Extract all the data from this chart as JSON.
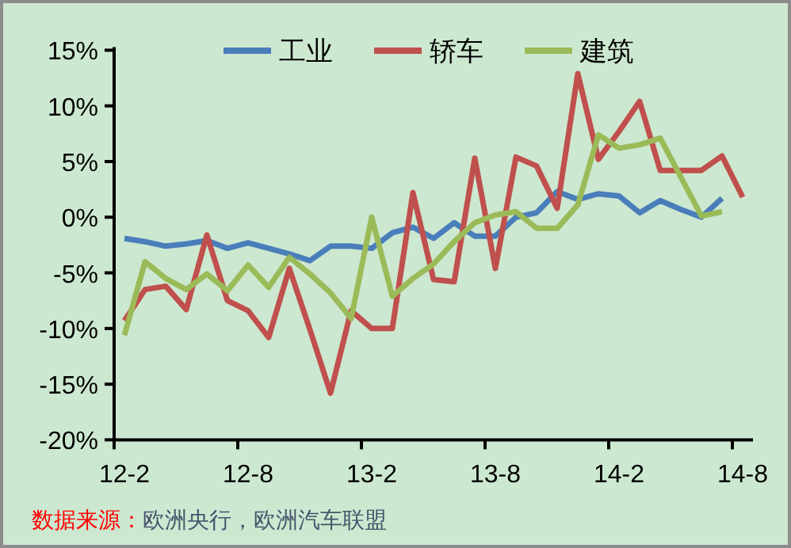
{
  "chart_data": {
    "type": "line",
    "categories": [
      "12-2",
      null,
      null,
      null,
      null,
      null,
      "12-8",
      null,
      null,
      null,
      null,
      null,
      "13-2",
      null,
      null,
      null,
      null,
      null,
      "13-8",
      null,
      null,
      null,
      null,
      null,
      "14-2",
      null,
      null,
      null,
      null,
      null,
      "14-8"
    ],
    "series": [
      {
        "name": "工业",
        "color": "#4a7ebb",
        "values": [
          -1.9,
          -2.2,
          -2.6,
          -2.4,
          -2.1,
          -2.8,
          -2.3,
          -2.8,
          -3.3,
          -3.9,
          -2.6,
          -2.6,
          -2.8,
          -1.4,
          -0.9,
          -1.9,
          -0.5,
          -1.7,
          -1.7,
          0.0,
          0.4,
          2.3,
          1.6,
          2.1,
          1.9,
          0.4,
          1.5,
          0.7,
          0.0,
          1.7,
          null
        ]
      },
      {
        "name": "轿车",
        "color": "#c0504d",
        "values": [
          -9.3,
          -6.5,
          -6.2,
          -8.3,
          -1.6,
          -7.5,
          -8.4,
          -10.8,
          -4.6,
          -10.1,
          -15.8,
          -8.4,
          -10.0,
          -10.0,
          2.2,
          -5.6,
          -5.8,
          5.3,
          -4.6,
          5.4,
          4.6,
          0.8,
          12.9,
          5.2,
          7.7,
          10.4,
          4.2,
          4.2,
          4.2,
          5.5,
          1.8
        ]
      },
      {
        "name": "建筑",
        "color": "#9bbb59",
        "values": [
          -10.6,
          -4.0,
          -5.5,
          -6.5,
          -5.1,
          -6.6,
          -4.3,
          -6.3,
          -3.6,
          -5.1,
          -6.8,
          -9.1,
          0.0,
          -7.1,
          -5.5,
          -4.2,
          -2.2,
          -0.5,
          0.2,
          0.5,
          -1.0,
          -1.0,
          1.1,
          7.4,
          6.2,
          6.5,
          7.1,
          3.6,
          0.1,
          0.5,
          null
        ]
      }
    ],
    "ylim": [
      -20,
      15
    ],
    "yticks": [
      {
        "value": -20,
        "label": "-20%"
      },
      {
        "value": -15,
        "label": "-15%"
      },
      {
        "value": -10,
        "label": "-10%"
      },
      {
        "value": -5,
        "label": "-5%"
      },
      {
        "value": 0,
        "label": "0%"
      },
      {
        "value": 5,
        "label": "5%"
      },
      {
        "value": 10,
        "label": "10%"
      },
      {
        "value": 15,
        "label": "15%"
      }
    ],
    "legend": "top",
    "grid": false,
    "annotations": [
      "数据来源：",
      "欧洲央行，欧洲汽车联盟"
    ]
  }
}
